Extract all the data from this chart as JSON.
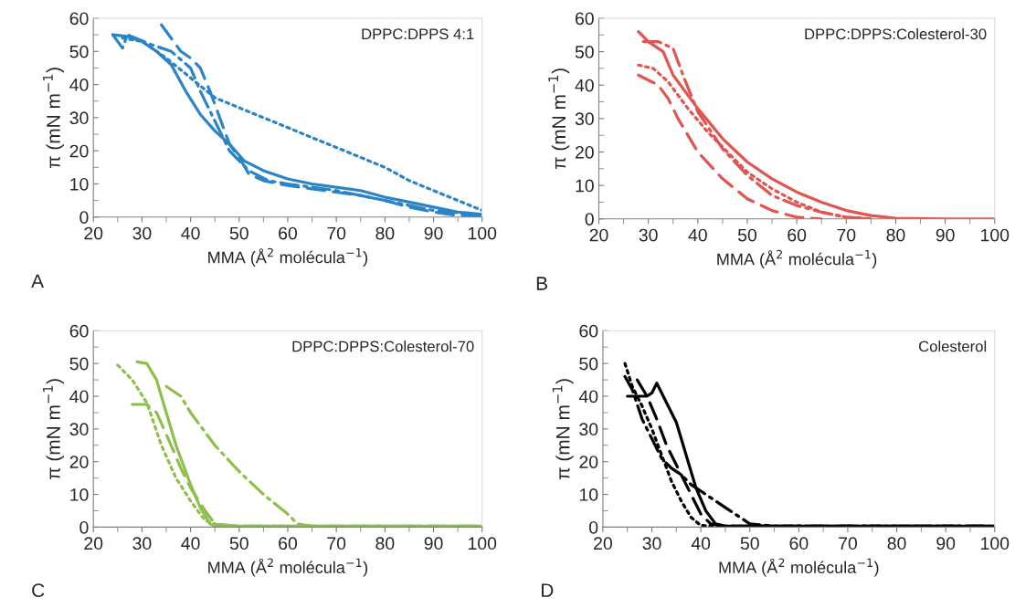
{
  "chart_data": [
    {
      "type": "line",
      "xlabel": "MMA (Å$^{2}$ molécula$^{−1}$)",
      "ylabel": "π (mN m$^{−1}$)",
      "annotations": [
        "DPPC:DPPS 4:1",
        "A"
      ],
      "xlim": [
        20,
        100
      ],
      "ylim": [
        0,
        60
      ],
      "xticks": [
        20,
        30,
        40,
        50,
        60,
        70,
        80,
        90,
        100
      ],
      "yticks": [
        0,
        10,
        20,
        30,
        40,
        50,
        60
      ],
      "grid": false,
      "marker": "none",
      "series": [
        {
          "color": "#2a84c6",
          "line_style": "solid",
          "x": [
            24,
            27,
            30,
            33,
            36,
            39,
            42,
            45,
            48,
            51,
            55,
            60,
            65,
            70,
            75,
            80,
            85,
            90,
            95,
            100
          ],
          "values": [
            55,
            54.5,
            53,
            50,
            46,
            38,
            31,
            26,
            22,
            17,
            14,
            11.5,
            10,
            9,
            8,
            6,
            4.5,
            3,
            1.5,
            0.8
          ]
        },
        {
          "color": "#2a84c6",
          "line_style": "dashed",
          "x": [
            34,
            36,
            38,
            40,
            42,
            44,
            46,
            48,
            50,
            52,
            55,
            60,
            65,
            70,
            75,
            80,
            85,
            90,
            95,
            100
          ],
          "values": [
            58,
            54,
            50,
            48,
            45,
            38,
            30,
            22,
            18,
            13,
            11,
            9.5,
            8.5,
            7.5,
            6.5,
            5,
            3,
            1.5,
            0.5,
            0.3
          ]
        },
        {
          "color": "#2a84c6",
          "line_style": "dotted",
          "x": [
            26,
            30,
            35,
            40,
            45,
            50,
            55,
            60,
            65,
            70,
            75,
            80,
            85,
            90,
            95,
            100
          ],
          "values": [
            54,
            53,
            48,
            42,
            36,
            33,
            30,
            27,
            24,
            21,
            18,
            15,
            11,
            8,
            5,
            2
          ]
        },
        {
          "color": "#2a84c6",
          "line_style": "dashdot",
          "x": [
            24,
            26,
            27,
            32,
            36,
            40,
            42,
            44,
            46,
            48,
            52,
            56,
            60,
            65,
            70,
            80,
            90,
            100
          ],
          "values": [
            55,
            51,
            55,
            52,
            50,
            45,
            38,
            32,
            26,
            20,
            14,
            11,
            10,
            9,
            8,
            5,
            2,
            0.5
          ]
        }
      ]
    },
    {
      "type": "line",
      "xlabel": "MMA (Å$^{2}$ molécula$^{−1}$)",
      "ylabel": "π (mN m$^{−1}$)",
      "annotations": [
        "DPPC:DPPS:Colesterol-30",
        "B"
      ],
      "xlim": [
        20,
        100
      ],
      "ylim": [
        0,
        60
      ],
      "xticks": [
        20,
        30,
        40,
        50,
        60,
        70,
        80,
        90,
        100
      ],
      "yticks": [
        0,
        10,
        20,
        30,
        40,
        50,
        60
      ],
      "grid": false,
      "marker": "none",
      "series": [
        {
          "color": "#e05550",
          "line_style": "solid",
          "x": [
            28,
            30,
            33,
            35,
            40,
            45,
            50,
            55,
            60,
            65,
            70,
            75,
            80,
            90,
            100
          ],
          "values": [
            56,
            53,
            50,
            43,
            33,
            24,
            17,
            12,
            8,
            5,
            2.5,
            1,
            0.2,
            0,
            0
          ]
        },
        {
          "color": "#e05550",
          "line_style": "dashed",
          "x": [
            28,
            30,
            32,
            34,
            36,
            40,
            45,
            50,
            55,
            60,
            65
          ],
          "values": [
            43,
            41.5,
            40,
            36,
            30,
            20,
            12,
            6,
            2.5,
            0.5,
            0
          ]
        },
        {
          "color": "#e05550",
          "line_style": "dotted",
          "x": [
            28,
            31,
            34,
            38,
            42,
            46,
            50,
            55,
            60,
            65,
            70,
            75
          ],
          "values": [
            46,
            45,
            41,
            33,
            26,
            20,
            14,
            9,
            5,
            2,
            0.5,
            0
          ]
        },
        {
          "color": "#e05550",
          "line_style": "dashdot",
          "x": [
            29,
            32,
            35,
            37,
            40,
            45,
            50,
            55,
            60,
            65,
            70,
            75
          ],
          "values": [
            53,
            53,
            51,
            43,
            32,
            21,
            13,
            7,
            4,
            2,
            0.5,
            0
          ]
        }
      ]
    },
    {
      "type": "line",
      "xlabel": "MMA (Å$^{2}$ molécula$^{−1}$)",
      "ylabel": "π (mN m$^{−1}$)",
      "annotations": [
        "DPPC:DPPS:Colesterol-70",
        "C"
      ],
      "xlim": [
        20,
        100
      ],
      "ylim": [
        0,
        60
      ],
      "xticks": [
        20,
        30,
        40,
        50,
        60,
        70,
        80,
        90,
        100
      ],
      "yticks": [
        0,
        10,
        20,
        30,
        40,
        50,
        60
      ],
      "grid": false,
      "marker": "none",
      "series": [
        {
          "color": "#8cc04b",
          "line_style": "solid",
          "x": [
            29,
            31,
            33,
            35,
            37,
            40,
            42,
            44,
            45,
            50,
            100
          ],
          "values": [
            50.5,
            50,
            45,
            35,
            25,
            13,
            6,
            1,
            0.3,
            0.3,
            0.3
          ]
        },
        {
          "color": "#8cc04b",
          "line_style": "dashed",
          "x": [
            28,
            31,
            33,
            36,
            38,
            40,
            43,
            45,
            50,
            100
          ],
          "values": [
            37.5,
            37.5,
            35,
            25,
            18,
            12,
            5,
            1,
            0.3,
            0.3
          ]
        },
        {
          "color": "#8cc04b",
          "line_style": "dotted",
          "x": [
            25,
            28,
            31,
            34,
            37,
            40,
            43,
            46,
            50,
            100
          ],
          "values": [
            49.5,
            45,
            38,
            25,
            15,
            8,
            2,
            0.5,
            0.3,
            0.2
          ]
        },
        {
          "color": "#8cc04b",
          "line_style": "dashdot",
          "x": [
            35,
            38,
            40,
            45,
            50,
            55,
            60,
            62,
            65,
            100
          ],
          "values": [
            43,
            40,
            35,
            25,
            17,
            10,
            4,
            1,
            0.3,
            0.3
          ]
        }
      ]
    },
    {
      "type": "line",
      "xlabel": "MMA (Å$^{2}$ molécula$^{−1}$)",
      "ylabel": "π (mN m$^{−1}$)",
      "annotations": [
        "Colesterol",
        "D"
      ],
      "xlim": [
        20,
        100
      ],
      "ylim": [
        0,
        60
      ],
      "xticks": [
        20,
        30,
        40,
        50,
        60,
        70,
        80,
        90,
        100
      ],
      "yticks": [
        0,
        10,
        20,
        30,
        40,
        50,
        60
      ],
      "grid": false,
      "marker": "none",
      "series": [
        {
          "color": "#000000",
          "line_style": "solid",
          "x": [
            25,
            29,
            30,
            31,
            33,
            35,
            37,
            39,
            41,
            43,
            45,
            100
          ],
          "values": [
            40,
            40,
            41,
            44,
            38,
            32,
            22,
            12,
            5,
            1,
            0.3,
            0.3
          ]
        },
        {
          "color": "#000000",
          "line_style": "dashed",
          "x": [
            27,
            29,
            31,
            33,
            36,
            38,
            40,
            42,
            45,
            100
          ],
          "values": [
            45,
            40,
            33,
            25,
            16,
            10,
            4,
            1,
            0.3,
            0.3
          ]
        },
        {
          "color": "#000000",
          "line_style": "dotted",
          "x": [
            24.5,
            26,
            28,
            30,
            32,
            34,
            36,
            38,
            40,
            45,
            100
          ],
          "values": [
            50,
            43,
            37,
            30,
            22,
            14,
            8,
            3,
            0.5,
            0.3,
            0.3
          ]
        },
        {
          "color": "#000000",
          "line_style": "dashdot",
          "x": [
            24.5,
            26,
            28,
            30,
            32,
            34,
            36,
            38,
            41,
            44,
            48,
            50,
            55,
            100
          ],
          "values": [
            46,
            42,
            33,
            27,
            21,
            18,
            16,
            13,
            10,
            7,
            3,
            1,
            0.3,
            0.3
          ]
        }
      ]
    }
  ]
}
